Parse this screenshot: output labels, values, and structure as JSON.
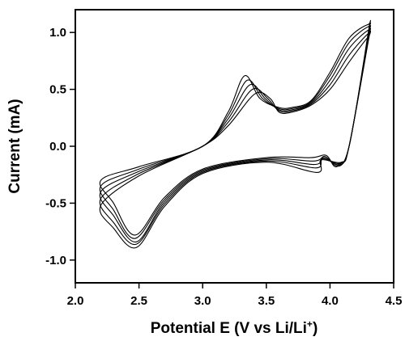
{
  "chart_data": {
    "type": "line",
    "title": "",
    "xlabel": "Potential E (V vs Li/Li",
    "xlabel_sup": "+",
    "xlabel_end": ")",
    "ylabel": "Current (mA)",
    "xlim": [
      2.0,
      4.5
    ],
    "ylim": [
      -1.2,
      1.2
    ],
    "xticks": [
      "2.0",
      "2.5",
      "3.0",
      "3.5",
      "4.0",
      "4.5"
    ],
    "yticks": [
      "-1.0",
      "-0.5",
      "0.0",
      "0.5",
      "1.0"
    ],
    "xtick_values": [
      2.0,
      2.5,
      3.0,
      3.5,
      4.0,
      4.5
    ],
    "ytick_values": [
      -1.0,
      -0.5,
      0.0,
      0.5,
      1.0
    ],
    "grid": false,
    "line_color": "#000000",
    "series": [
      {
        "anodic": [
          [
            2.2,
            -0.3
          ],
          [
            2.5,
            -0.18
          ],
          [
            3.0,
            0.0
          ],
          [
            3.2,
            0.3
          ],
          [
            3.33,
            0.62
          ],
          [
            3.45,
            0.42
          ],
          [
            3.6,
            0.34
          ],
          [
            3.7,
            0.34
          ],
          [
            3.85,
            0.4
          ],
          [
            4.0,
            0.65
          ],
          [
            4.15,
            0.95
          ],
          [
            4.3,
            1.07
          ]
        ],
        "cathodic": [
          [
            4.3,
            1.0
          ],
          [
            4.15,
            0.0
          ],
          [
            4.05,
            -0.18
          ],
          [
            3.97,
            -0.08
          ],
          [
            3.85,
            -0.1
          ],
          [
            3.5,
            -0.1
          ],
          [
            3.0,
            -0.2
          ],
          [
            2.7,
            -0.45
          ],
          [
            2.47,
            -0.78
          ],
          [
            2.3,
            -0.5
          ],
          [
            2.2,
            -0.3
          ]
        ]
      },
      {
        "anodic": [
          [
            2.2,
            -0.35
          ],
          [
            2.5,
            -0.2
          ],
          [
            3.0,
            0.0
          ],
          [
            3.2,
            0.27
          ],
          [
            3.35,
            0.58
          ],
          [
            3.47,
            0.42
          ],
          [
            3.6,
            0.33
          ],
          [
            3.7,
            0.33
          ],
          [
            3.85,
            0.39
          ],
          [
            4.0,
            0.62
          ],
          [
            4.15,
            0.91
          ],
          [
            4.3,
            1.05
          ]
        ],
        "cathodic": [
          [
            4.3,
            0.98
          ],
          [
            4.15,
            0.0
          ],
          [
            4.06,
            -0.17
          ],
          [
            3.96,
            -0.09
          ],
          [
            3.87,
            -0.13
          ],
          [
            3.5,
            -0.11
          ],
          [
            3.0,
            -0.21
          ],
          [
            2.7,
            -0.47
          ],
          [
            2.47,
            -0.81
          ],
          [
            2.3,
            -0.56
          ],
          [
            2.2,
            -0.35
          ]
        ]
      },
      {
        "anodic": [
          [
            2.2,
            -0.4
          ],
          [
            2.5,
            -0.22
          ],
          [
            3.0,
            0.0
          ],
          [
            3.2,
            0.24
          ],
          [
            3.37,
            0.54
          ],
          [
            3.49,
            0.42
          ],
          [
            3.6,
            0.32
          ],
          [
            3.7,
            0.32
          ],
          [
            3.85,
            0.38
          ],
          [
            4.0,
            0.58
          ],
          [
            4.15,
            0.86
          ],
          [
            4.3,
            1.02
          ]
        ],
        "cathodic": [
          [
            4.3,
            0.96
          ],
          [
            4.15,
            0.0
          ],
          [
            4.07,
            -0.16
          ],
          [
            3.95,
            -0.1
          ],
          [
            3.88,
            -0.16
          ],
          [
            3.5,
            -0.12
          ],
          [
            3.0,
            -0.22
          ],
          [
            2.7,
            -0.49
          ],
          [
            2.48,
            -0.84
          ],
          [
            2.3,
            -0.61
          ],
          [
            2.2,
            -0.4
          ]
        ]
      },
      {
        "anodic": [
          [
            2.2,
            -0.46
          ],
          [
            2.5,
            -0.24
          ],
          [
            3.0,
            0.0
          ],
          [
            3.2,
            0.21
          ],
          [
            3.39,
            0.5
          ],
          [
            3.51,
            0.42
          ],
          [
            3.6,
            0.31
          ],
          [
            3.7,
            0.31
          ],
          [
            3.85,
            0.37
          ],
          [
            4.0,
            0.54
          ],
          [
            4.15,
            0.8
          ],
          [
            4.3,
            0.99
          ]
        ],
        "cathodic": [
          [
            4.3,
            0.94
          ],
          [
            4.15,
            0.0
          ],
          [
            4.08,
            -0.15
          ],
          [
            3.94,
            -0.11
          ],
          [
            3.89,
            -0.19
          ],
          [
            3.5,
            -0.13
          ],
          [
            3.0,
            -0.23
          ],
          [
            2.7,
            -0.51
          ],
          [
            2.48,
            -0.86
          ],
          [
            2.3,
            -0.67
          ],
          [
            2.2,
            -0.46
          ]
        ]
      },
      {
        "anodic": [
          [
            2.2,
            -0.52
          ],
          [
            2.5,
            -0.26
          ],
          [
            3.0,
            0.0
          ],
          [
            3.2,
            0.18
          ],
          [
            3.41,
            0.46
          ],
          [
            3.53,
            0.42
          ],
          [
            3.6,
            0.3
          ],
          [
            3.7,
            0.3
          ],
          [
            3.85,
            0.36
          ],
          [
            4.0,
            0.5
          ],
          [
            4.15,
            0.74
          ],
          [
            4.3,
            0.96
          ]
        ],
        "cathodic": [
          [
            4.3,
            0.92
          ],
          [
            4.15,
            0.0
          ],
          [
            4.09,
            -0.14
          ],
          [
            3.93,
            -0.12
          ],
          [
            3.9,
            -0.23
          ],
          [
            3.5,
            -0.14
          ],
          [
            3.0,
            -0.24
          ],
          [
            2.7,
            -0.53
          ],
          [
            2.48,
            -0.89
          ],
          [
            2.3,
            -0.72
          ],
          [
            2.2,
            -0.52
          ]
        ]
      }
    ]
  }
}
